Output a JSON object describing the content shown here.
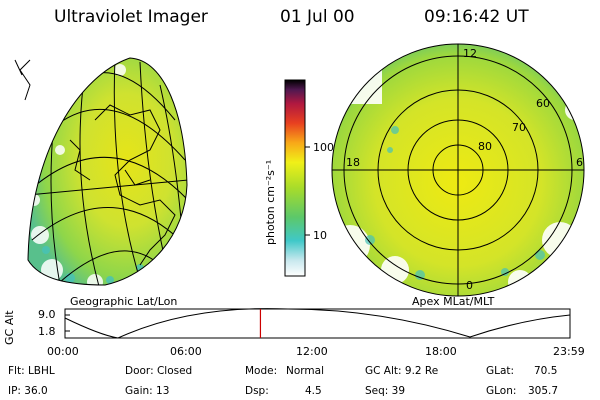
{
  "header": {
    "instrument": "Ultraviolet Imager",
    "date": "01 Jul 00",
    "time": "09:16:42 UT"
  },
  "left_panel": {
    "caption": "Geographic Lat/Lon"
  },
  "right_panel": {
    "caption": "Apex MLat/MLT",
    "mlt_labels": [
      "12",
      "18",
      "6",
      "0"
    ],
    "lat_labels": [
      "60",
      "70",
      "80"
    ]
  },
  "colorbar": {
    "unit_label": "photon cm⁻²s⁻¹",
    "ticks": [
      "100",
      "10"
    ],
    "scale": "log"
  },
  "altitude_plot": {
    "ylabel": "GC Alt",
    "yticks": [
      "9.0",
      "1.8"
    ],
    "xticks": [
      "00:00",
      "06:00",
      "12:00",
      "18:00",
      "23:59"
    ],
    "current_time_fraction": 0.387
  },
  "status": {
    "flt": "Flt: LBHL",
    "door": "Door: Closed",
    "mode_label": "Mode:",
    "mode_value": "Normal",
    "gc_alt": "GC Alt: 9.2 Re",
    "glat_label": "GLat:",
    "glat_value": "70.5",
    "ip": "IP: 36.0",
    "gain": "Gain: 13",
    "dsp_label": "Dsp:",
    "dsp_value": "4.5",
    "seq": "Seq: 39",
    "glon_label": "GLon:",
    "glon_value": "305.7"
  },
  "colors": {
    "background": "#ffffff",
    "marker": "#cc0000"
  }
}
